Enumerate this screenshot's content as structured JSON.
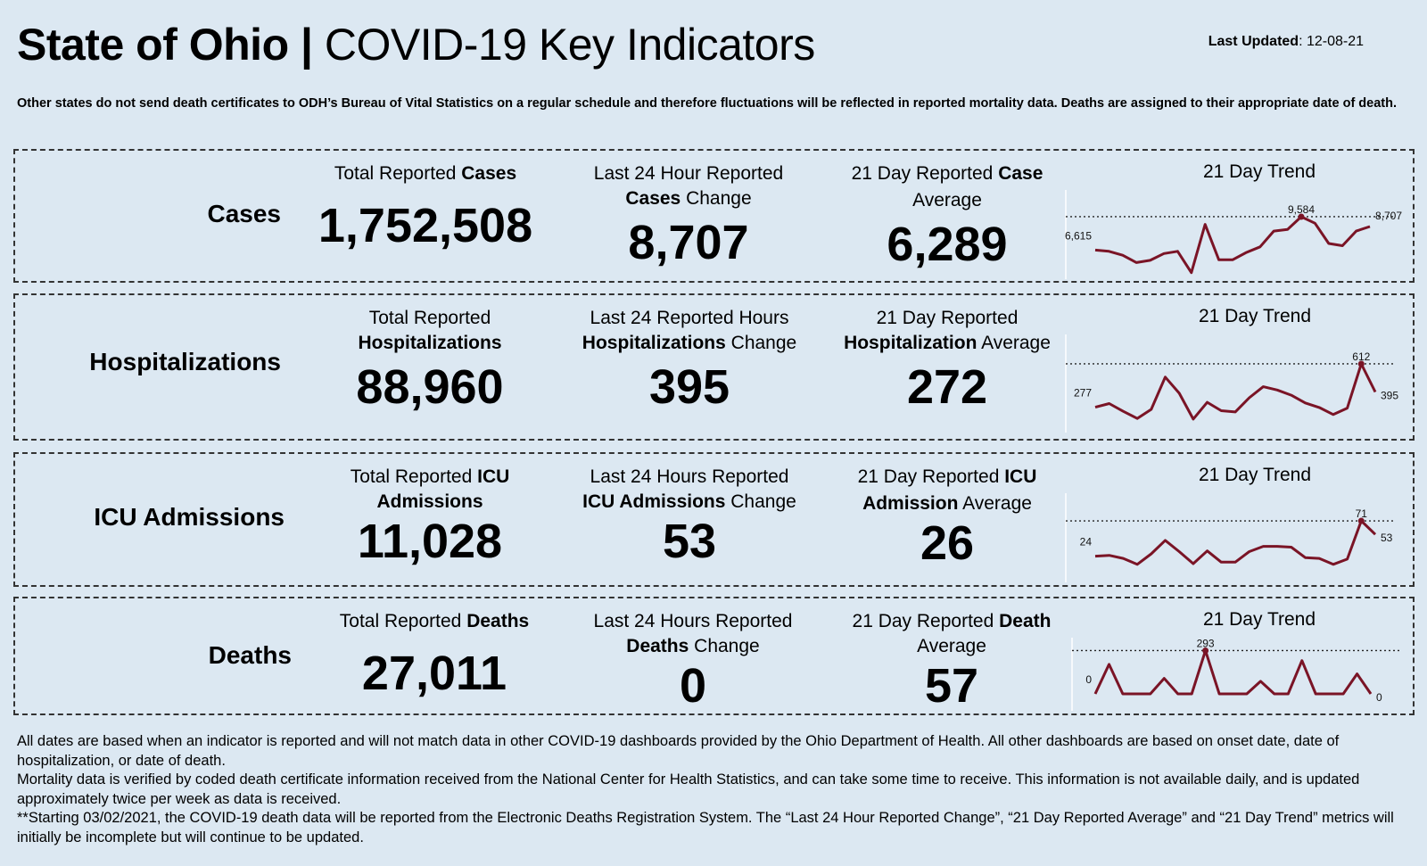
{
  "header": {
    "title_bold": "State of Ohio |",
    "title_rest": " COVID-19  Key Indicators",
    "updated_label": "Last Updated",
    "updated_value": ": 12-08-21"
  },
  "note": "Other states do not send death certificates to ODH’s Bureau of Vital Statistics on a regular schedule and therefore fluctuations will be reflected in reported mortality data. Deaths are assigned to their appropriate date of death.",
  "panels": {
    "cases": {
      "label": "Cases",
      "total": {
        "h1a": "Total Reported ",
        "h1b": "Cases",
        "value": "1,752,508"
      },
      "last24": {
        "h1": "Last 24 Hour Reported",
        "h2a": "Cases",
        "h2b": " Change",
        "value": "8,707"
      },
      "avg": {
        "h1a": "21 Day Reported ",
        "h1b": "Case",
        "h2": "Average",
        "value": "6,289"
      },
      "trend_title": "21 Day Trend"
    },
    "hosp": {
      "label": "Hospitalizations",
      "total": {
        "h1": "Total Reported",
        "h2": "Hospitalizations",
        "value": "88,960"
      },
      "last24": {
        "h1": "Last 24 Reported Hours",
        "h2a": "Hospitalizations",
        "h2b": " Change",
        "value": "395"
      },
      "avg": {
        "h1": "21 Day Reported",
        "h2a": "Hospitalization",
        "h2b": " Average",
        "value": "272"
      },
      "trend_title": "21 Day Trend"
    },
    "icu": {
      "label": "ICU Admissions",
      "total": {
        "h1a": "Total Reported ",
        "h1b": "ICU",
        "h2": "Admissions",
        "value": "11,028"
      },
      "last24": {
        "h1": "Last 24 Hours Reported",
        "h2a": "ICU Admissions",
        "h2b": " Change",
        "value": "53"
      },
      "avg": {
        "h1a": "21 Day Reported ",
        "h1b": "ICU",
        "h2a": "Admission",
        "h2b": " Average",
        "value": "26"
      },
      "trend_title": "21 Day Trend"
    },
    "deaths": {
      "label": "Deaths",
      "total": {
        "h1a": "Total Reported ",
        "h1b": "Deaths",
        "value": "27,011"
      },
      "last24": {
        "h1": "Last 24 Hours Reported",
        "h2a": "Deaths",
        "h2b": " Change",
        "value": "0"
      },
      "avg": {
        "h1a": "21 Day Reported ",
        "h1b": "Death",
        "h2": "Average",
        "value": "57"
      },
      "trend_title": "21 Day Trend"
    }
  },
  "footer": {
    "p1": "All dates are based when an indicator is reported and will not match data in other COVID-19 dashboards provided by the Ohio Department of Health. All other dashboards are based on onset date, date of hospitalization, or date of death.",
    "p2": "Mortality data is verified by coded death certificate information received from the National Center for Health Statistics, and can take some time to receive. This information is not available daily, and is updated approximately twice per week as data is received.",
    "p3": "**Starting 03/02/2021, the COVID-19 death data will be reported from the Electronic Deaths Registration System. The “Last 24 Hour Reported Change”, “21 Day Reported Average” and “21 Day Trend” metrics will initially be incomplete but will continue to be updated."
  },
  "colors": {
    "line": "#7a1426",
    "background": "#dce8f2"
  },
  "chart_data": [
    {
      "type": "line",
      "title": "21 Day Trend",
      "panel": "cases",
      "values": [
        6615,
        6500,
        6150,
        5500,
        5700,
        6300,
        6500,
        4600,
        8900,
        5750,
        5750,
        6400,
        6900,
        8300,
        8450,
        9584,
        9000,
        7200,
        7000,
        8300,
        8707
      ],
      "labels": {
        "first": "6,615",
        "max": "9,584",
        "last": "8,707"
      },
      "ylim": [
        4500,
        9900
      ]
    },
    {
      "type": "line",
      "title": "21 Day Trend",
      "panel": "hosp",
      "values": [
        277,
        305,
        245,
        190,
        260,
        510,
        385,
        185,
        315,
        250,
        240,
        350,
        435,
        410,
        370,
        310,
        275,
        220,
        270,
        612,
        395
      ],
      "labels": {
        "first": "277",
        "max": "612",
        "last": "395"
      },
      "ylim": [
        150,
        660
      ]
    },
    {
      "type": "line",
      "title": "21 Day Trend",
      "panel": "icu",
      "values": [
        24,
        25,
        21,
        13,
        27,
        45,
        30,
        14,
        31,
        16,
        16,
        30,
        37,
        37,
        36,
        22,
        21,
        13,
        20,
        71,
        53
      ],
      "labels": {
        "first": "24",
        "max": "71",
        "last": "53"
      },
      "ylim": [
        8,
        77
      ]
    },
    {
      "type": "line",
      "title": "21 Day Trend",
      "panel": "deaths",
      "values": [
        0,
        200,
        0,
        0,
        0,
        105,
        0,
        0,
        293,
        0,
        0,
        0,
        85,
        0,
        0,
        225,
        0,
        0,
        0,
        135,
        0
      ],
      "labels": {
        "first": "0",
        "max": "293",
        "last": "0"
      },
      "ylim": [
        0,
        320
      ]
    }
  ]
}
